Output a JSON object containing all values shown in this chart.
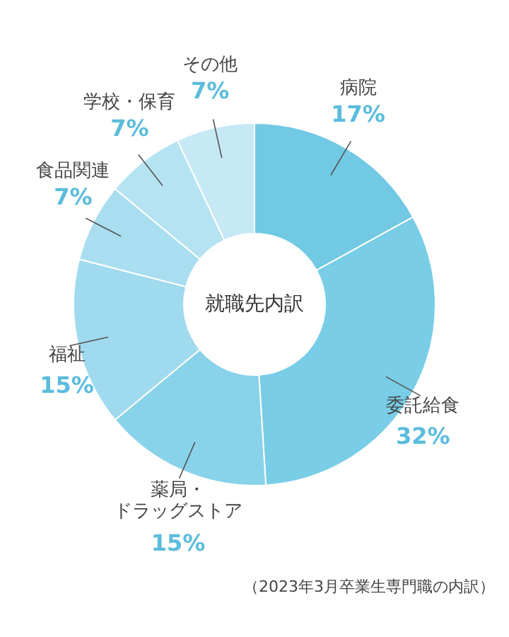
{
  "chart_data": {
    "type": "donut",
    "title": "就職先内訳",
    "categories": [
      "病院",
      "委託給食",
      "薬局・ドラッグストア",
      "福祉",
      "食品関連",
      "学校・保育",
      "その他"
    ],
    "values": [
      17,
      32,
      15,
      15,
      7,
      7,
      7
    ],
    "value_labels": [
      "17%",
      "32%",
      "15%",
      "15%",
      "7%",
      "7%",
      "7%"
    ],
    "colors": [
      "#71c9e3",
      "#79cde6",
      "#88d2ea",
      "#a0daee",
      "#a9def0",
      "#b6e3f2",
      "#c6e9f5"
    ],
    "annotations": [
      "（2023年3月卒業生専門職の内訳）"
    ]
  }
}
